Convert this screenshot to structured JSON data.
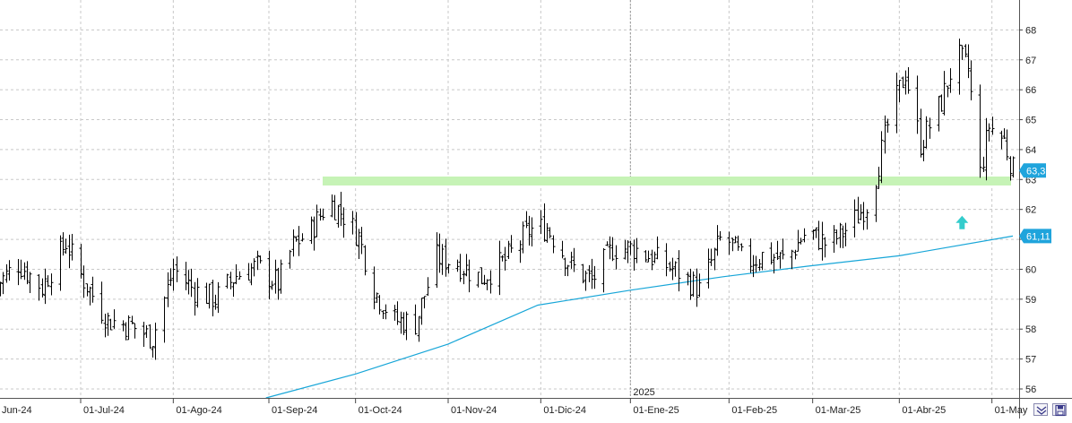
{
  "chart_data": {
    "type": "ohlc",
    "year_marker": "2025",
    "x_tick_labels": [
      "Jun-24",
      "01-Jul-24",
      "01-Ago-24",
      "01-Sep-24",
      "01-Oct-24",
      "01-Nov-24",
      "01-Dic-24",
      "01-Ene-25",
      "01-Feb-25",
      "01-Mar-25",
      "01-Abr-25",
      "01-May"
    ],
    "x_tick_dates": [
      "2024-06-03",
      "2024-07-01",
      "2024-08-01",
      "2024-09-02",
      "2024-10-01",
      "2024-11-01",
      "2024-12-02",
      "2025-01-01",
      "2025-02-03",
      "2025-03-03",
      "2025-04-01",
      "2025-05-02"
    ],
    "y_ticks": [
      56,
      57,
      58,
      59,
      60,
      61,
      62,
      63,
      64,
      65,
      66,
      67,
      68
    ],
    "ylim": [
      55.7,
      69
    ],
    "last_price_label": "63,3",
    "last_price": 63.3,
    "ma_label": "61,11",
    "ma_value": 61.11,
    "resistance_zone": {
      "value": 62.95,
      "start": "2024-09-20",
      "end": "2025-05-09"
    },
    "signal_arrow": {
      "date": "2025-04-22",
      "value": 61.55,
      "direction": "up"
    },
    "price_path": [
      [
        "2024-06-01",
        59.3
      ],
      [
        "2024-06-10",
        60.2
      ],
      [
        "2024-06-18",
        59.4
      ],
      [
        "2024-06-26",
        60.9
      ],
      [
        "2024-07-01",
        59.8
      ],
      [
        "2024-07-10",
        58.3
      ],
      [
        "2024-07-18",
        58.1
      ],
      [
        "2024-07-25",
        57.7
      ],
      [
        "2024-08-01",
        60.0
      ],
      [
        "2024-08-08",
        59.3
      ],
      [
        "2024-08-15",
        59.0
      ],
      [
        "2024-08-22",
        59.8
      ],
      [
        "2024-08-29",
        60.1
      ],
      [
        "2024-09-05",
        59.5
      ],
      [
        "2024-09-10",
        60.8
      ],
      [
        "2024-09-16",
        61.3
      ],
      [
        "2024-09-22",
        62.3
      ],
      [
        "2024-09-27",
        61.8
      ],
      [
        "2024-10-02",
        61.1
      ],
      [
        "2024-10-07",
        59.3
      ],
      [
        "2024-10-14",
        58.3
      ],
      [
        "2024-10-21",
        58.2
      ],
      [
        "2024-10-28",
        60.4
      ],
      [
        "2024-11-04",
        60.2
      ],
      [
        "2024-11-12",
        59.7
      ],
      [
        "2024-11-20",
        60.3
      ],
      [
        "2024-11-28",
        61.3
      ],
      [
        "2024-12-04",
        61.4
      ],
      [
        "2024-12-12",
        60.1
      ],
      [
        "2024-12-19",
        59.6
      ],
      [
        "2024-12-26",
        60.7
      ],
      [
        "2025-01-02",
        60.7
      ],
      [
        "2025-01-10",
        60.3
      ],
      [
        "2025-01-17",
        59.9
      ],
      [
        "2025-01-24",
        59.3
      ],
      [
        "2025-02-01",
        61.2
      ],
      [
        "2025-02-08",
        60.2
      ],
      [
        "2025-02-15",
        60.5
      ],
      [
        "2025-02-22",
        60.3
      ],
      [
        "2025-03-01",
        61.3
      ],
      [
        "2025-03-08",
        60.8
      ],
      [
        "2025-03-15",
        61.4
      ],
      [
        "2025-03-22",
        62.3
      ],
      [
        "2025-03-28",
        64.8
      ],
      [
        "2025-04-03",
        66.6
      ],
      [
        "2025-04-08",
        64.2
      ],
      [
        "2025-04-15",
        65.6
      ],
      [
        "2025-04-20",
        67.2
      ],
      [
        "2025-04-24",
        66.7
      ],
      [
        "2025-04-28",
        63.2
      ],
      [
        "2025-05-01",
        64.8
      ],
      [
        "2025-05-06",
        64.3
      ],
      [
        "2025-05-09",
        63.3
      ]
    ],
    "ma_path": [
      [
        "2024-09-01",
        55.7
      ],
      [
        "2024-10-01",
        56.5
      ],
      [
        "2024-11-01",
        57.5
      ],
      [
        "2024-12-01",
        58.8
      ],
      [
        "2025-01-01",
        59.3
      ],
      [
        "2025-02-01",
        59.75
      ],
      [
        "2025-03-01",
        60.1
      ],
      [
        "2025-04-01",
        60.45
      ],
      [
        "2025-05-09",
        61.11
      ]
    ],
    "colors": {
      "bars": "#000000",
      "moving_average": "#18a6d8",
      "resistance_zone": "#c6f3b6",
      "label_box": "#1fa4dc",
      "arrow": "#33cccc",
      "grid": "#c8c8c8"
    }
  },
  "controls": {
    "zoom_icon": "zoom-down-icon",
    "save_icon": "save-disk-icon"
  }
}
